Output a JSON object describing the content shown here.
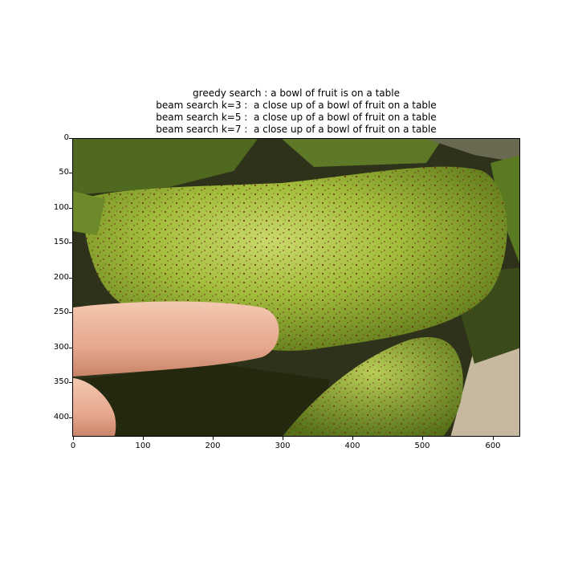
{
  "figure": {
    "title_lines": [
      "greedy search : a bowl of fruit is on a table",
      "beam search k=3 :  a close up of a bowl of fruit on a table",
      "beam search k=5 :  a close up of a bowl of fruit on a table",
      "beam search k=7 :  a close up of a bowl of fruit on a table"
    ],
    "x_ticks": [
      "0",
      "100",
      "200",
      "300",
      "400",
      "500",
      "600"
    ],
    "y_ticks": [
      "0",
      "50",
      "100",
      "150",
      "200",
      "250",
      "300",
      "350",
      "400"
    ],
    "image_subject": "speckled-green-fruit-with-finger"
  }
}
